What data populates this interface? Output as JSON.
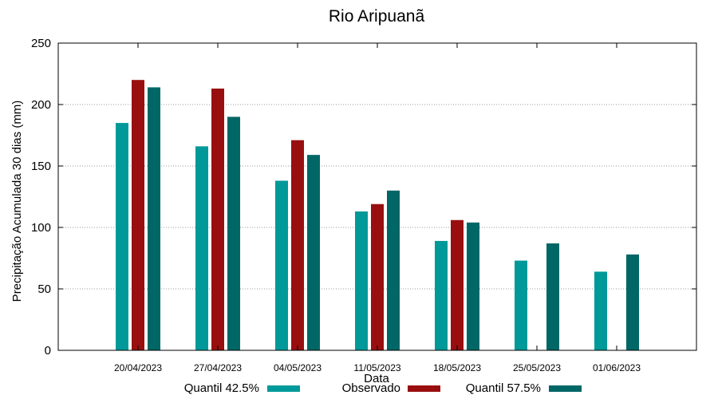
{
  "chart_data": {
    "type": "bar",
    "title": "Rio Aripuanã",
    "xlabel": "Data",
    "ylabel": "Precipitação Acumulada 30 dias (mm)",
    "ylim": [
      0,
      250
    ],
    "yticks": [
      0,
      50,
      100,
      150,
      200,
      250
    ],
    "grid": true,
    "legend_position": "bottom",
    "categories": [
      "20/04/2023",
      "27/04/2023",
      "04/05/2023",
      "11/05/2023",
      "18/05/2023",
      "25/05/2023",
      "01/06/2023"
    ],
    "series": [
      {
        "name": "Quantil 42.5%",
        "color": "#009999",
        "values": [
          185,
          166,
          138,
          113,
          89,
          73,
          64
        ]
      },
      {
        "name": "Observado",
        "color": "#990f0f",
        "values": [
          220,
          213,
          171,
          119,
          106,
          null,
          null
        ]
      },
      {
        "name": "Quantil 57.5%",
        "color": "#006666",
        "values": [
          214,
          190,
          159,
          130,
          104,
          87,
          78
        ]
      }
    ]
  }
}
